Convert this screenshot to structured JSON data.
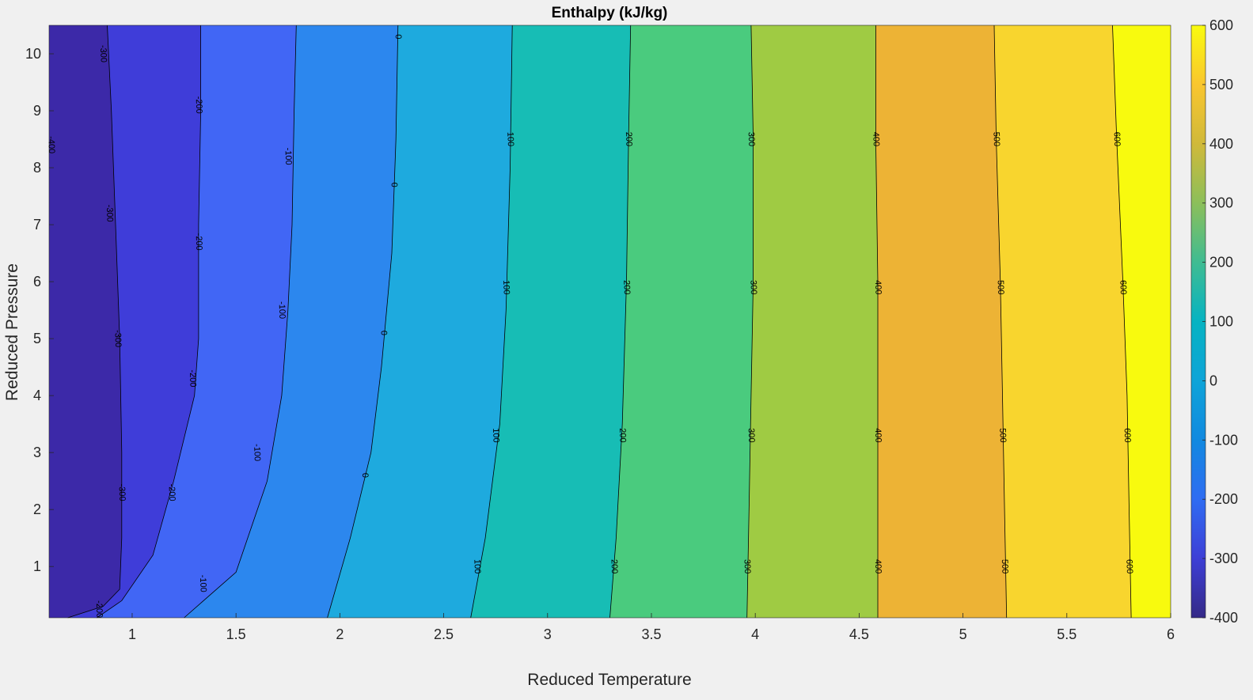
{
  "chart_data": {
    "type": "contourf",
    "title": "Enthalpy (kJ/kg)",
    "xlabel": "Reduced Temperature",
    "ylabel": "Reduced Pressure",
    "xlim": [
      0.6,
      6
    ],
    "ylim": [
      0.1,
      10.5
    ],
    "x_ticks": [
      1,
      1.5,
      2,
      2.5,
      3,
      3.5,
      4,
      4.5,
      5,
      5.5,
      6
    ],
    "y_ticks": [
      1,
      2,
      3,
      4,
      5,
      6,
      7,
      8,
      9,
      10
    ],
    "colorbar": {
      "lim": [
        -400,
        600
      ],
      "ticks": [
        -400,
        -300,
        -200,
        -100,
        0,
        100,
        200,
        300,
        400,
        500,
        600
      ],
      "colormap": "parula"
    },
    "levels": [
      -400,
      -300,
      -200,
      -100,
      0,
      100,
      200,
      300,
      400,
      500,
      600
    ],
    "contours": [
      {
        "level": -300,
        "color": "#3f3dd9",
        "points": [
          [
            0.69,
            0.1
          ],
          [
            0.86,
            0.3
          ],
          [
            0.94,
            0.6
          ],
          [
            0.95,
            1.5
          ],
          [
            0.95,
            3
          ],
          [
            0.94,
            5
          ],
          [
            0.92,
            7
          ],
          [
            0.9,
            9
          ],
          [
            0.88,
            10.5
          ]
        ],
        "labels": [
          [
            0.95,
            2.3
          ],
          [
            0.93,
            5.0
          ],
          [
            0.89,
            7.2
          ],
          [
            0.86,
            10.0
          ]
        ]
      },
      {
        "level": -200,
        "color": "#4166f5",
        "points": [
          [
            0.83,
            0.1
          ],
          [
            0.95,
            0.4
          ],
          [
            1.1,
            1.2
          ],
          [
            1.2,
            2.5
          ],
          [
            1.3,
            4
          ],
          [
            1.32,
            5
          ],
          [
            1.32,
            7
          ],
          [
            1.33,
            9
          ],
          [
            1.33,
            10.5
          ]
        ],
        "labels": [
          [
            0.84,
            0.25
          ],
          [
            1.19,
            2.3
          ],
          [
            1.29,
            4.3
          ],
          [
            1.32,
            6.7
          ],
          [
            1.32,
            9.1
          ]
        ]
      },
      {
        "level": -100,
        "color": "#2c87ee",
        "points": [
          [
            1.25,
            0.1
          ],
          [
            1.5,
            0.9
          ],
          [
            1.65,
            2.5
          ],
          [
            1.72,
            4
          ],
          [
            1.75,
            5.5
          ],
          [
            1.77,
            7
          ],
          [
            1.78,
            9
          ],
          [
            1.79,
            10.5
          ]
        ],
        "labels": [
          [
            1.34,
            0.7
          ],
          [
            1.6,
            3.0
          ],
          [
            1.72,
            5.5
          ],
          [
            1.75,
            8.2
          ]
        ]
      },
      {
        "level": 0,
        "color": "#1eaade",
        "points": [
          [
            1.94,
            0.1
          ],
          [
            2.05,
            1.5
          ],
          [
            2.15,
            3
          ],
          [
            2.2,
            4.5
          ],
          [
            2.25,
            6.5
          ],
          [
            2.27,
            8.5
          ],
          [
            2.28,
            10.5
          ]
        ],
        "labels": [
          [
            2.12,
            2.6
          ],
          [
            2.21,
            5.1
          ],
          [
            2.26,
            7.7
          ],
          [
            2.28,
            10.3
          ]
        ]
      },
      {
        "level": 100,
        "color": "#17bdb5",
        "points": [
          [
            2.63,
            0.1
          ],
          [
            2.7,
            1.5
          ],
          [
            2.77,
            3.5
          ],
          [
            2.8,
            5.5
          ],
          [
            2.82,
            8
          ],
          [
            2.83,
            10.5
          ]
        ],
        "labels": [
          [
            2.66,
            1.0
          ],
          [
            2.75,
            3.3
          ],
          [
            2.8,
            5.9
          ],
          [
            2.82,
            8.5
          ]
        ]
      },
      {
        "level": 200,
        "color": "#4acb7e",
        "points": [
          [
            3.3,
            0.1
          ],
          [
            3.33,
            1.5
          ],
          [
            3.36,
            3.5
          ],
          [
            3.38,
            6
          ],
          [
            3.39,
            8.5
          ],
          [
            3.4,
            10.5
          ]
        ],
        "labels": [
          [
            3.32,
            1.0
          ],
          [
            3.36,
            3.3
          ],
          [
            3.38,
            5.9
          ],
          [
            3.39,
            8.5
          ]
        ]
      },
      {
        "level": 300,
        "color": "#9fcb43",
        "points": [
          [
            3.96,
            0.1
          ],
          [
            3.97,
            2
          ],
          [
            3.98,
            4
          ],
          [
            3.99,
            6
          ],
          [
            3.99,
            8.5
          ],
          [
            3.98,
            10.5
          ]
        ],
        "labels": [
          [
            3.96,
            1.0
          ],
          [
            3.98,
            3.3
          ],
          [
            3.99,
            5.9
          ],
          [
            3.98,
            8.5
          ]
        ]
      },
      {
        "level": 400,
        "color": "#edb335",
        "points": [
          [
            4.59,
            0.1
          ],
          [
            4.59,
            2
          ],
          [
            4.59,
            4
          ],
          [
            4.59,
            6
          ],
          [
            4.58,
            8.5
          ],
          [
            4.58,
            10.5
          ]
        ],
        "labels": [
          [
            4.59,
            1.0
          ],
          [
            4.59,
            3.3
          ],
          [
            4.59,
            5.9
          ],
          [
            4.58,
            8.5
          ]
        ]
      },
      {
        "level": 500,
        "color": "#f8d52e",
        "points": [
          [
            5.21,
            0.1
          ],
          [
            5.2,
            2
          ],
          [
            5.19,
            4
          ],
          [
            5.18,
            6
          ],
          [
            5.16,
            8.5
          ],
          [
            5.15,
            10.5
          ]
        ],
        "labels": [
          [
            5.2,
            1.0
          ],
          [
            5.19,
            3.3
          ],
          [
            5.18,
            5.9
          ],
          [
            5.16,
            8.5
          ]
        ]
      },
      {
        "level": 600,
        "color": "#f8fa0e",
        "points": [
          [
            5.81,
            0.1
          ],
          [
            5.8,
            2
          ],
          [
            5.79,
            4
          ],
          [
            5.77,
            6
          ],
          [
            5.74,
            8.5
          ],
          [
            5.72,
            10.5
          ]
        ],
        "labels": [
          [
            5.8,
            1.0
          ],
          [
            5.79,
            3.3
          ],
          [
            5.77,
            5.9
          ],
          [
            5.74,
            8.5
          ]
        ]
      }
    ],
    "fill_lowest": "#3c29a8",
    "extra_labels": [
      {
        "level": -400,
        "x": 0.61,
        "y": 8.4
      }
    ]
  }
}
